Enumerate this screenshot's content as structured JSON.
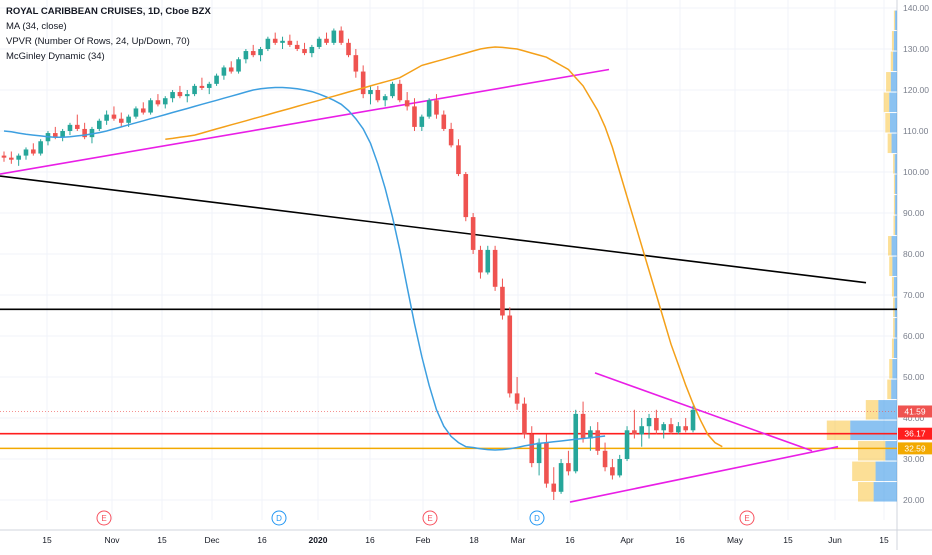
{
  "legend": {
    "title": "ROYAL CARIBBEAN CRUISES, 1D, Cboe BZX",
    "ma": "MA (34, close)",
    "vpvr": "VPVR (Number Of Rows, 24, Up/Down, 70)",
    "mcginley": "McGinley Dynamic (34)"
  },
  "colors": {
    "up": "#26a69a",
    "down": "#ef5350",
    "ma": "#f4a019",
    "mcginley": "#3d9fe0",
    "trend_magenta": "#e91ee6",
    "black_line": "#000000",
    "level_red": "#ff1e1e",
    "level_orange": "#f2a900",
    "vpvr_up": "#2b8fe6",
    "vpvr_down": "#f9c540"
  },
  "chart_data": {
    "type": "candlestick",
    "title": "ROYAL CARIBBEAN CRUISES, 1D, Cboe BZX",
    "ylim": [
      14.5,
      141.5
    ],
    "y_ticks": [
      "140.00",
      "130.00",
      "120.00",
      "110.00",
      "100.00",
      "90.00",
      "80.00",
      "70.00",
      "60.00",
      "50.00",
      "40.00",
      "30.00",
      "20.00"
    ],
    "x_ticks": [
      "15",
      "Nov",
      "15",
      "Dec",
      "16",
      "2020",
      "16",
      "Feb",
      "18",
      "Mar",
      "16",
      "Apr",
      "16",
      "May",
      "15",
      "Jun",
      "15"
    ],
    "price_labels": [
      {
        "text": "41.59",
        "value": 41.59,
        "color": "#ef5350"
      },
      {
        "text": "36.17",
        "value": 36.17,
        "color": "#ff1e1e"
      },
      {
        "text": "32.59",
        "value": 32.59,
        "color": "#f2a900"
      }
    ],
    "events": [
      "E",
      "D",
      "E",
      "D",
      "E"
    ],
    "horizontal_levels": [
      66.5,
      36.17,
      32.59
    ],
    "ohlc": [
      [
        104,
        105,
        102.5,
        103.5
      ],
      [
        103.5,
        105,
        102,
        103
      ],
      [
        103,
        104.5,
        101.5,
        104
      ],
      [
        104,
        106,
        103,
        105.5
      ],
      [
        105.5,
        107,
        104,
        104.5
      ],
      [
        104.5,
        108,
        104,
        107.5
      ],
      [
        107.5,
        110,
        106.5,
        109.5
      ],
      [
        109.5,
        111,
        108,
        108.5
      ],
      [
        108.5,
        110.5,
        107.5,
        110
      ],
      [
        110,
        112,
        109,
        111.5
      ],
      [
        111.5,
        114,
        110,
        110.5
      ],
      [
        110.5,
        112,
        108,
        108.5
      ],
      [
        108.5,
        111,
        107,
        110.5
      ],
      [
        110.5,
        113,
        110,
        112.5
      ],
      [
        112.5,
        115,
        111.5,
        114
      ],
      [
        114,
        116,
        112.5,
        113
      ],
      [
        113,
        114.5,
        111,
        112
      ],
      [
        112,
        114,
        111,
        113.5
      ],
      [
        113.5,
        116,
        113,
        115.5
      ],
      [
        115.5,
        117,
        114,
        114.5
      ],
      [
        114.5,
        118,
        114,
        117.5
      ],
      [
        117.5,
        119,
        116,
        116.5
      ],
      [
        116.5,
        118.5,
        115.5,
        118
      ],
      [
        118,
        120,
        117,
        119.5
      ],
      [
        119.5,
        121,
        118,
        118.5
      ],
      [
        118.5,
        120,
        117,
        119
      ],
      [
        119,
        121.5,
        118.5,
        121
      ],
      [
        121,
        123,
        120,
        120.5
      ],
      [
        120.5,
        122,
        119,
        121.5
      ],
      [
        121.5,
        124,
        121,
        123.5
      ],
      [
        123.5,
        126,
        122.5,
        125.5
      ],
      [
        125.5,
        127,
        124,
        124.5
      ],
      [
        124.5,
        128,
        124,
        127.5
      ],
      [
        127.5,
        130,
        126.5,
        129.5
      ],
      [
        129.5,
        131,
        128,
        128.5
      ],
      [
        128.5,
        130.5,
        127,
        130
      ],
      [
        130,
        133,
        129.5,
        132.5
      ],
      [
        132.5,
        134,
        131,
        131.5
      ],
      [
        131.5,
        133,
        130,
        132
      ],
      [
        132,
        133.5,
        130.5,
        131
      ],
      [
        131,
        132,
        129.5,
        130
      ],
      [
        130,
        131.5,
        128.5,
        129
      ],
      [
        129,
        131,
        128,
        130.5
      ],
      [
        130.5,
        133,
        130,
        132.5
      ],
      [
        132.5,
        134,
        131,
        131.5
      ],
      [
        131.5,
        135,
        131,
        134.5
      ],
      [
        134.5,
        135.5,
        131,
        131.5
      ],
      [
        131.5,
        132.5,
        128,
        128.5
      ],
      [
        128.5,
        130,
        123,
        124.5
      ],
      [
        124.5,
        126,
        118,
        119
      ],
      [
        119,
        121,
        116.5,
        120
      ],
      [
        120,
        121,
        117,
        117.5
      ],
      [
        117.5,
        119,
        116,
        118.5
      ],
      [
        118.5,
        122,
        118,
        121.5
      ],
      [
        121.5,
        122.5,
        117,
        117.5
      ],
      [
        117.5,
        119.5,
        115,
        116
      ],
      [
        116,
        118,
        110,
        111
      ],
      [
        111,
        114,
        110,
        113.5
      ],
      [
        113.5,
        118,
        113,
        117.5
      ],
      [
        117.5,
        119,
        113,
        114
      ],
      [
        114,
        115,
        110,
        110.5
      ],
      [
        110.5,
        112,
        106,
        106.5
      ],
      [
        106.5,
        108,
        99,
        99.5
      ],
      [
        99.5,
        100,
        88,
        89
      ],
      [
        89,
        90,
        80,
        81
      ],
      [
        81,
        82,
        74,
        75.5
      ],
      [
        75.5,
        82,
        75,
        81
      ],
      [
        81,
        82,
        71,
        72
      ],
      [
        72,
        74,
        64,
        65
      ],
      [
        65,
        67,
        45,
        46
      ],
      [
        46,
        50,
        42,
        43.5
      ],
      [
        43.5,
        45,
        35,
        36
      ],
      [
        36,
        38,
        28,
        29
      ],
      [
        29,
        35,
        26,
        34
      ],
      [
        34,
        36,
        23,
        24
      ],
      [
        24,
        28,
        20,
        22
      ],
      [
        22,
        30,
        21.5,
        29
      ],
      [
        29,
        32,
        26,
        27
      ],
      [
        27,
        42,
        26.5,
        41
      ],
      [
        41,
        44,
        34,
        35
      ],
      [
        35,
        38,
        32,
        37
      ],
      [
        37,
        39,
        31,
        32
      ],
      [
        32,
        34,
        27,
        28
      ],
      [
        28,
        30,
        25,
        26
      ],
      [
        26,
        31,
        25.5,
        30
      ],
      [
        30,
        38,
        29.5,
        37
      ],
      [
        37,
        42,
        35,
        36
      ],
      [
        36,
        40,
        33,
        38
      ],
      [
        38,
        41,
        35,
        40
      ],
      [
        40,
        42,
        36,
        37
      ],
      [
        37,
        39,
        35,
        38.5
      ],
      [
        38.5,
        40,
        36,
        36.5
      ],
      [
        36.5,
        39,
        36,
        38
      ],
      [
        38,
        40,
        36.5,
        37
      ],
      [
        37,
        43,
        36.5,
        42
      ]
    ],
    "ma_34": [
      108,
      108.2,
      108.5,
      108.7,
      109,
      109.5,
      110,
      110.5,
      111,
      111.5,
      112,
      112.5,
      113,
      113.5,
      114,
      114.5,
      115,
      115.5,
      116,
      116.5,
      117,
      117.5,
      118,
      118.5,
      119,
      119.5,
      120,
      120.5,
      121,
      121.5,
      122,
      122.5,
      123,
      124,
      125,
      126,
      126.5,
      127,
      127.5,
      128,
      128.5,
      129,
      129.5,
      130,
      130.3,
      130.5,
      130.4,
      130.2,
      130,
      129.5,
      129,
      128.5,
      128,
      127,
      126,
      125,
      123,
      121,
      118,
      115,
      111,
      106,
      100,
      94,
      88,
      82,
      76,
      70,
      64,
      58,
      53,
      48,
      43.5,
      39.5,
      36,
      34,
      33
    ],
    "mcginley_34": [
      110,
      109.8,
      109.5,
      109.2,
      109,
      108.8,
      108.6,
      108.5,
      108.5,
      108.6,
      108.8,
      109,
      109.3,
      109.6,
      110,
      110.5,
      111,
      111.5,
      112,
      112.5,
      113,
      113.5,
      114,
      114.5,
      115,
      115.5,
      116,
      116.5,
      117,
      117.5,
      118,
      118.5,
      119,
      119.5,
      120,
      120.3,
      120.5,
      120.6,
      120.6,
      120.5,
      120.3,
      120,
      119.6,
      119,
      118.3,
      117.5,
      116.5,
      115,
      113,
      110.5,
      107,
      102,
      96,
      89,
      81,
      72,
      63,
      55,
      48,
      42,
      38,
      35.5,
      34,
      33,
      32.8,
      32.5,
      32.3,
      32.2,
      32.3,
      32.5,
      32.8,
      33.2,
      33.5,
      33.8,
      34,
      34.2,
      34.4,
      34.6,
      34.8,
      35,
      35.2,
      35.4,
      35.6
    ],
    "vpvr": [
      {
        "price": 22,
        "up": 60,
        "down": 40
      },
      {
        "price": 27,
        "up": 55,
        "down": 60
      },
      {
        "price": 32,
        "up": 30,
        "down": 70
      },
      {
        "price": 37,
        "up": 120,
        "down": 60
      },
      {
        "price": 42,
        "up": 48,
        "down": 32
      },
      {
        "price": 47,
        "up": 15,
        "down": 10
      },
      {
        "price": 52,
        "up": 12,
        "down": 8
      },
      {
        "price": 57,
        "up": 8,
        "down": 5
      },
      {
        "price": 62,
        "up": 6,
        "down": 4
      },
      {
        "price": 67,
        "up": 6,
        "down": 4
      },
      {
        "price": 72,
        "up": 8,
        "down": 5
      },
      {
        "price": 77,
        "up": 12,
        "down": 8
      },
      {
        "price": 82,
        "up": 14,
        "down": 9
      },
      {
        "price": 87,
        "up": 5,
        "down": 4
      },
      {
        "price": 92,
        "up": 5,
        "down": 3
      },
      {
        "price": 97,
        "up": 5,
        "down": 3
      },
      {
        "price": 102,
        "up": 6,
        "down": 4
      },
      {
        "price": 107,
        "up": 14,
        "down": 10
      },
      {
        "price": 112,
        "up": 18,
        "down": 12
      },
      {
        "price": 117,
        "up": 20,
        "down": 14
      },
      {
        "price": 122,
        "up": 16,
        "down": 12
      },
      {
        "price": 127,
        "up": 10,
        "down": 6
      },
      {
        "price": 132,
        "up": 8,
        "down": 5
      },
      {
        "price": 137,
        "up": 5,
        "down": 3
      }
    ]
  }
}
